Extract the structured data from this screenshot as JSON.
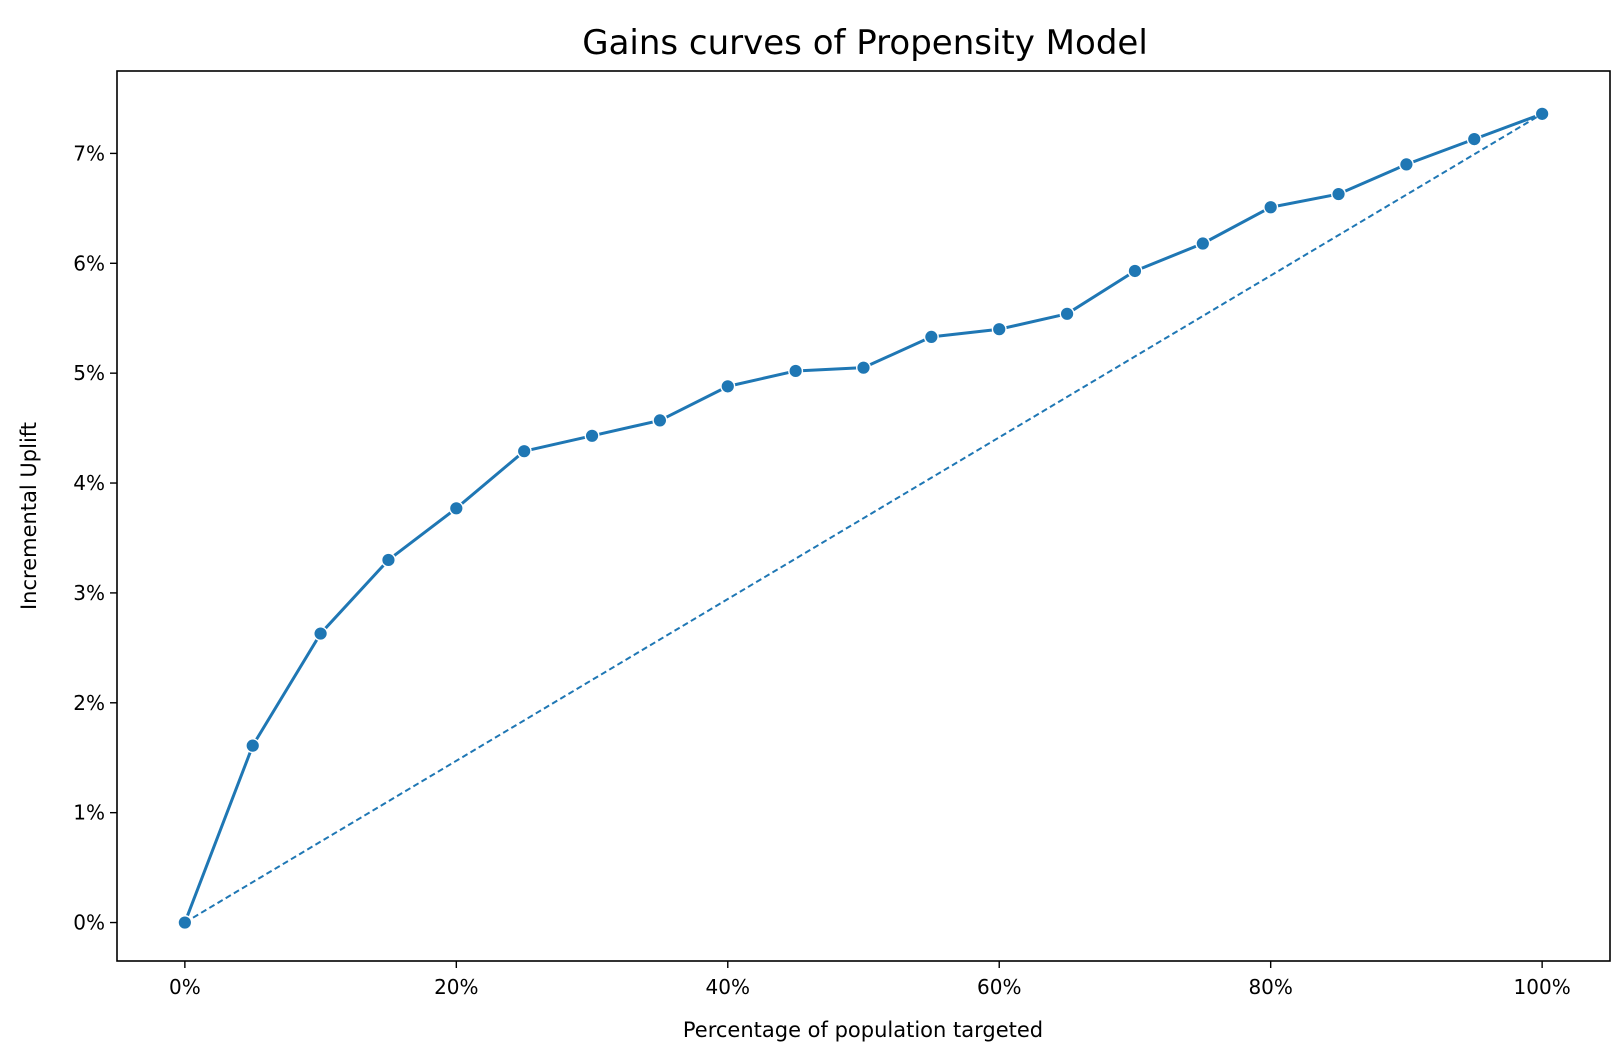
{
  "chart_data": {
    "type": "line",
    "title": "Gains curves of Propensity Model",
    "xlabel": "Percentage of population targeted",
    "ylabel": "Incremental Uplift",
    "xlim": [
      -5,
      105
    ],
    "ylim": [
      -0.35,
      7.75
    ],
    "xticks": [
      0,
      20,
      40,
      60,
      80,
      100
    ],
    "xtick_labels": [
      "0%",
      "20%",
      "40%",
      "60%",
      "80%",
      "100%"
    ],
    "yticks": [
      0,
      1,
      2,
      3,
      4,
      5,
      6,
      7
    ],
    "ytick_labels": [
      "0%",
      "1%",
      "2%",
      "3%",
      "4%",
      "5%",
      "6%",
      "7%"
    ],
    "grid": false,
    "legend": "none",
    "series": [
      {
        "style": "solid-with-markers",
        "color": "#1f77b4",
        "x": [
          0,
          5,
          10,
          15,
          20,
          25,
          30,
          35,
          40,
          45,
          50,
          55,
          60,
          65,
          70,
          75,
          80,
          85,
          90,
          95,
          100
        ],
        "y": [
          0.0,
          1.61,
          2.63,
          3.3,
          3.77,
          4.29,
          4.43,
          4.57,
          4.88,
          5.02,
          5.05,
          5.33,
          5.4,
          5.54,
          5.93,
          6.18,
          6.51,
          6.63,
          6.9,
          7.13,
          7.36
        ]
      },
      {
        "style": "dashed",
        "color": "#1f77b4",
        "x": [
          0,
          100
        ],
        "y": [
          0.0,
          7.36
        ]
      }
    ]
  }
}
